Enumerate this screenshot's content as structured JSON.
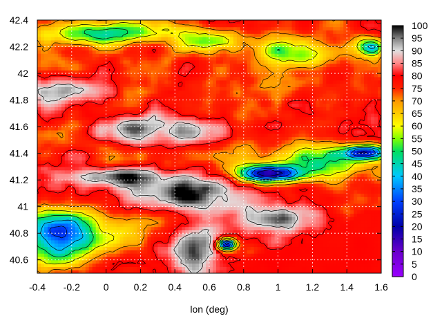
{
  "chart_data": {
    "type": "heatmap",
    "title": "",
    "xlabel": "lon (deg)",
    "ylabel": "",
    "xlim": [
      -0.4,
      1.6
    ],
    "ylim": [
      40.5,
      42.4
    ],
    "x_ticks": [
      -0.4,
      -0.2,
      0,
      0.2,
      0.4,
      0.6,
      0.8,
      1,
      1.2,
      1.4,
      1.6
    ],
    "x_tick_labels": [
      "-0.4",
      "-0.2",
      "0",
      "0.2",
      "0.4",
      "0.6",
      "0.8",
      "1",
      "1.2",
      "1.4",
      "1.6"
    ],
    "y_ticks": [
      40.6,
      40.8,
      41,
      41.2,
      41.4,
      41.6,
      41.8,
      42,
      42.2,
      42.4
    ],
    "y_tick_labels": [
      "40.6",
      "40.8",
      "41",
      "41.2",
      "41.4",
      "41.6",
      "41.8",
      "42",
      "42.2",
      "42.4"
    ],
    "colorbar": {
      "min": 0,
      "max": 100,
      "ticks": [
        0,
        5,
        10,
        15,
        20,
        25,
        30,
        35,
        40,
        45,
        50,
        55,
        60,
        65,
        70,
        75,
        80,
        85,
        90,
        95,
        100
      ],
      "tick_labels": [
        "0",
        "5",
        "10",
        "15",
        "20",
        "25",
        "30",
        "35",
        "40",
        "45",
        "50",
        "55",
        "60",
        "65",
        "70",
        "75",
        "80",
        "85",
        "90",
        "95",
        "100"
      ],
      "stops": [
        {
          "value": 0,
          "color": "#9900ff"
        },
        {
          "value": 10,
          "color": "#6a00cc"
        },
        {
          "value": 20,
          "color": "#0000a8"
        },
        {
          "value": 30,
          "color": "#0040ff"
        },
        {
          "value": 40,
          "color": "#00c8ff"
        },
        {
          "value": 50,
          "color": "#00e060"
        },
        {
          "value": 55,
          "color": "#80ff00"
        },
        {
          "value": 60,
          "color": "#ffff00"
        },
        {
          "value": 70,
          "color": "#ff9900"
        },
        {
          "value": 75,
          "color": "#ff2200"
        },
        {
          "value": 80,
          "color": "#ff0000"
        },
        {
          "value": 85,
          "color": "#ff8888"
        },
        {
          "value": 90,
          "color": "#e0e0e0"
        },
        {
          "value": 95,
          "color": "#808080"
        },
        {
          "value": 100,
          "color": "#000000"
        }
      ]
    },
    "grid": true,
    "contours": true,
    "features": [
      {
        "name": "sea",
        "value": 79,
        "region": "lower right, south-east of the coastline"
      },
      {
        "name": "dark basin",
        "value": 97,
        "region": "centre band around lat 41.0-41.3"
      },
      {
        "name": "blue pocket",
        "value": 24,
        "region": "around lon 0.95, lat 41.25"
      },
      {
        "name": "blue patch",
        "value": 26,
        "region": "around lon 1.5, lat 41.4"
      },
      {
        "name": "purple patch",
        "value": 8,
        "region": "around lon 0.7, lat 40.72"
      },
      {
        "name": "green/cyan western edge",
        "value": 52,
        "region": "left side around lat 40.6-40.9"
      },
      {
        "name": "green/cyan northern edge",
        "value": 48,
        "region": "top around lat 42.3"
      }
    ]
  }
}
